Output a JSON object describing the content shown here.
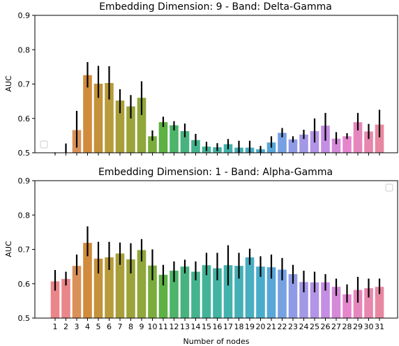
{
  "chart_data": [
    {
      "type": "bar",
      "title": "Embedding Dimension: 9 - Band: Delta-Gamma",
      "xlabel": "",
      "ylabel": "AUC",
      "ylim": [
        0.5,
        0.9
      ],
      "yticks": [
        "0.5",
        "0.6",
        "0.7",
        "0.8",
        "0.9"
      ],
      "grid": false,
      "legend": "bottom-left (empty)",
      "categories": [
        "1",
        "2",
        "3",
        "4",
        "5",
        "6",
        "7",
        "8",
        "9",
        "10",
        "11",
        "12",
        "13",
        "14",
        "15",
        "16",
        "17",
        "18",
        "19",
        "20",
        "21",
        "22",
        "23",
        "24",
        "25",
        "26",
        "27",
        "28",
        "29",
        "30",
        "31"
      ],
      "values": [
        0.492,
        0.497,
        0.566,
        0.726,
        0.701,
        0.703,
        0.652,
        0.635,
        0.66,
        0.548,
        0.589,
        0.58,
        0.563,
        0.537,
        0.518,
        0.516,
        0.525,
        0.515,
        0.515,
        0.51,
        0.53,
        0.558,
        0.539,
        0.553,
        0.563,
        0.579,
        0.541,
        0.548,
        0.589,
        0.562,
        0.582
      ],
      "err_low": [
        0.485,
        0.47,
        0.515,
        0.69,
        0.66,
        0.655,
        0.615,
        0.6,
        0.61,
        0.535,
        0.575,
        0.565,
        0.545,
        0.52,
        0.505,
        0.505,
        0.51,
        0.5,
        0.5,
        0.5,
        0.515,
        0.545,
        0.53,
        0.54,
        0.53,
        0.535,
        0.525,
        0.54,
        0.565,
        0.54,
        0.545
      ],
      "err_high": [
        0.498,
        0.527,
        0.622,
        0.764,
        0.753,
        0.752,
        0.685,
        0.668,
        0.708,
        0.565,
        0.605,
        0.592,
        0.585,
        0.555,
        0.532,
        0.528,
        0.54,
        0.535,
        0.535,
        0.52,
        0.548,
        0.572,
        0.548,
        0.567,
        0.6,
        0.616,
        0.56,
        0.557,
        0.616,
        0.584,
        0.625
      ]
    },
    {
      "type": "bar",
      "title": "Embedding Dimension: 1 - Band: Alpha-Gamma",
      "xlabel": "Number of nodes",
      "ylabel": "AUC",
      "ylim": [
        0.5,
        0.9
      ],
      "yticks": [
        "0.5",
        "0.6",
        "0.7",
        "0.8",
        "0.9"
      ],
      "grid": false,
      "legend": "top-right (empty)",
      "categories": [
        "1",
        "2",
        "3",
        "4",
        "5",
        "6",
        "7",
        "8",
        "9",
        "10",
        "11",
        "12",
        "13",
        "14",
        "15",
        "16",
        "17",
        "18",
        "19",
        "20",
        "21",
        "22",
        "23",
        "24",
        "25",
        "26",
        "27",
        "28",
        "29",
        "30",
        "31"
      ],
      "values": [
        0.607,
        0.614,
        0.652,
        0.719,
        0.673,
        0.677,
        0.688,
        0.671,
        0.698,
        0.653,
        0.626,
        0.638,
        0.65,
        0.635,
        0.654,
        0.645,
        0.654,
        0.652,
        0.677,
        0.65,
        0.648,
        0.641,
        0.628,
        0.605,
        0.604,
        0.604,
        0.591,
        0.569,
        0.582,
        0.587,
        0.591
      ],
      "err_low": [
        0.58,
        0.595,
        0.625,
        0.68,
        0.63,
        0.64,
        0.655,
        0.63,
        0.665,
        0.61,
        0.595,
        0.605,
        0.63,
        0.61,
        0.625,
        0.61,
        0.595,
        0.615,
        0.655,
        0.62,
        0.615,
        0.61,
        0.6,
        0.575,
        0.575,
        0.58,
        0.565,
        0.545,
        0.545,
        0.56,
        0.57
      ],
      "err_high": [
        0.64,
        0.635,
        0.685,
        0.767,
        0.722,
        0.722,
        0.72,
        0.718,
        0.73,
        0.7,
        0.655,
        0.665,
        0.67,
        0.665,
        0.69,
        0.69,
        0.712,
        0.69,
        0.702,
        0.68,
        0.685,
        0.675,
        0.655,
        0.638,
        0.635,
        0.628,
        0.615,
        0.598,
        0.62,
        0.615,
        0.615
      ]
    }
  ],
  "bar_colors": [
    "#eb8589",
    "#e9868a",
    "#d99158",
    "#d08b3d",
    "#c4923a",
    "#b89b3b",
    "#a89f3a",
    "#9aa43a",
    "#8fa73b",
    "#7aac3b",
    "#5db244",
    "#4db46a",
    "#49b380",
    "#45b38e",
    "#43b398",
    "#43b3a2",
    "#43b2ac",
    "#45b0b5",
    "#48aec0",
    "#4aaccb",
    "#59a6d8",
    "#77a1e2",
    "#8f9be6",
    "#a398e6",
    "#b394e6",
    "#c48ee4",
    "#d58ad9",
    "#e586cd",
    "#e587bc",
    "#e687ae",
    "#e888a0"
  ]
}
